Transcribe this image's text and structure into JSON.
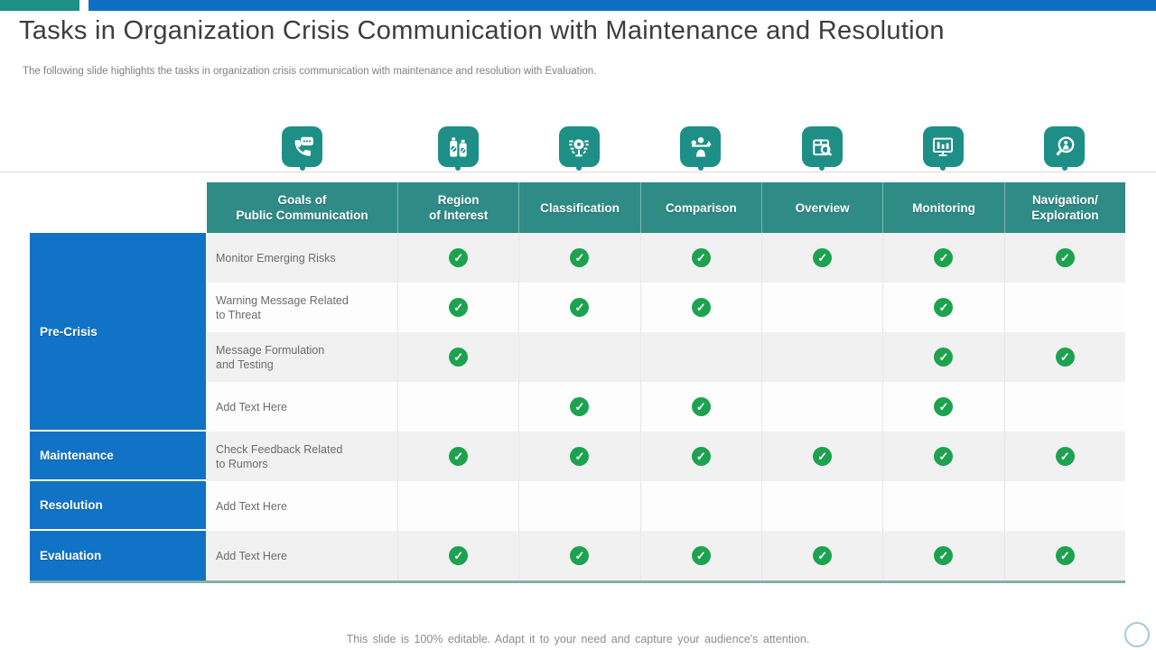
{
  "header": {
    "title": "Tasks in Organization Crisis Communication with Maintenance and Resolution",
    "subtitle": "The following slide highlights the tasks in organization crisis communication with maintenance and resolution with Evaluation."
  },
  "colors": {
    "teal": "#1E8F87",
    "blue": "#0D6EC2",
    "header_teal": "#2E8B85",
    "group_blue": "#1173C6",
    "green": "#1DA24F"
  },
  "check_glyph": "✓",
  "table": {
    "columns": [
      {
        "id": "goals",
        "label": "Goals of\nPublic Communication",
        "icon": "phone-message-icon"
      },
      {
        "id": "region",
        "label": "Region\nof Interest",
        "icon": "bottles-badge-icon"
      },
      {
        "id": "classification",
        "label": "Classification",
        "icon": "gear-network-icon"
      },
      {
        "id": "comparison",
        "label": "Comparison",
        "icon": "person-balance-icon"
      },
      {
        "id": "overview",
        "label": "Overview",
        "icon": "package-magnifier-icon"
      },
      {
        "id": "monitoring",
        "label": "Monitoring",
        "icon": "monitor-chart-icon"
      },
      {
        "id": "navigation",
        "label": "Navigation/\nExploration",
        "icon": "magnifier-person-icon"
      }
    ],
    "groups": [
      {
        "label": "Pre-Crisis",
        "row_span": 4
      },
      {
        "label": "Maintenance",
        "row_span": 1
      },
      {
        "label": "Resolution",
        "row_span": 1
      },
      {
        "label": "Evaluation",
        "row_span": 1
      }
    ],
    "rows": [
      {
        "task": "Monitor Emerging Risks",
        "checks": [
          true,
          true,
          true,
          true,
          true,
          true
        ]
      },
      {
        "task": "Warning Message Related\nto Threat",
        "checks": [
          true,
          true,
          true,
          false,
          true,
          false
        ]
      },
      {
        "task": "Message Formulation\nand Testing",
        "checks": [
          true,
          false,
          false,
          false,
          true,
          true
        ]
      },
      {
        "task": "Add Text Here",
        "checks": [
          false,
          true,
          true,
          false,
          true,
          false
        ]
      },
      {
        "task": "Check Feedback Related\nto Rumors",
        "checks": [
          true,
          true,
          true,
          true,
          true,
          true
        ]
      },
      {
        "task": "Add Text Here",
        "checks": [
          false,
          false,
          false,
          false,
          false,
          false
        ]
      },
      {
        "task": "Add Text Here",
        "checks": [
          true,
          true,
          true,
          true,
          true,
          true
        ]
      }
    ]
  },
  "footer": {
    "note": "This slide is 100% editable. Adapt it to your need and capture your audience's attention."
  }
}
